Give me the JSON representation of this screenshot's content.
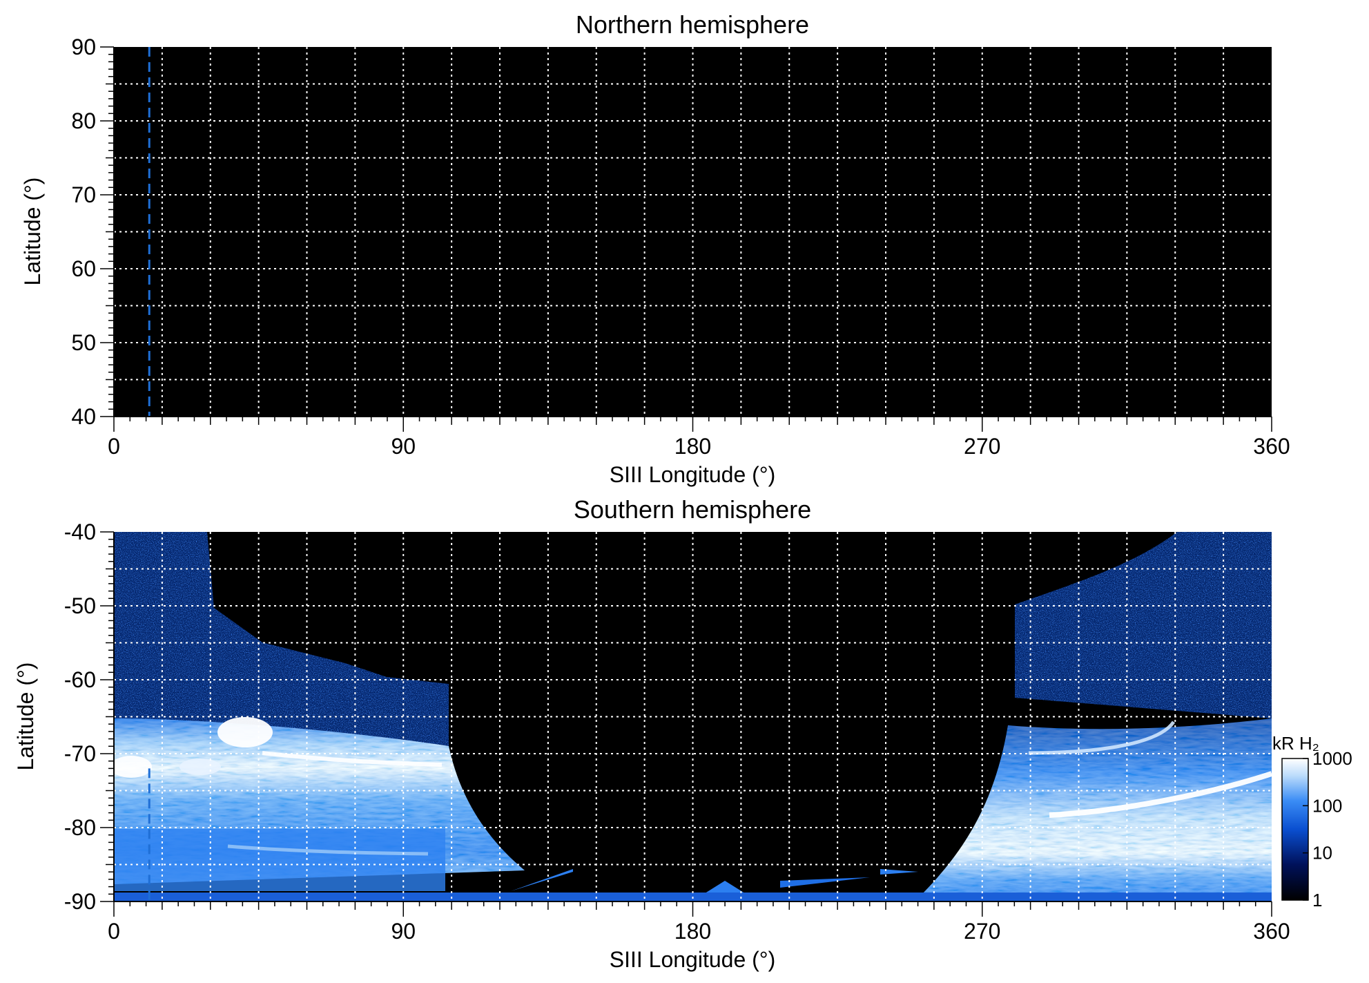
{
  "chart_data": [
    {
      "type": "heatmap",
      "title": "Northern hemisphere",
      "xlabel": "SIII Longitude (°)",
      "ylabel": "Latitude (°)",
      "xlim": [
        0,
        360
      ],
      "ylim": [
        40,
        90
      ],
      "xticks": [
        0,
        90,
        180,
        270,
        360
      ],
      "xtick_labels": [
        "0",
        "90",
        "180",
        "270",
        "360"
      ],
      "yticks": [
        40,
        50,
        60,
        70,
        80,
        90
      ],
      "ytick_labels": [
        "40",
        "50",
        "60",
        "70",
        "80",
        "90"
      ],
      "grid": true,
      "grid_style": "dotted white",
      "grid_x_step": 15,
      "grid_y_step": 5,
      "background": "#000000",
      "reference_line": {
        "longitude": 11,
        "color": "#1f6fd6",
        "style": "dashed"
      },
      "emission": []
    },
    {
      "type": "heatmap",
      "title": "Southern hemisphere",
      "xlabel": "SIII Longitude (°)",
      "ylabel": "Latitude (°)",
      "xlim": [
        0,
        360
      ],
      "ylim": [
        -90,
        -40
      ],
      "xticks": [
        0,
        90,
        180,
        270,
        360
      ],
      "xtick_labels": [
        "0",
        "90",
        "180",
        "270",
        "360"
      ],
      "yticks": [
        -90,
        -80,
        -70,
        -60,
        -50,
        -40
      ],
      "ytick_labels": [
        "-90",
        "-80",
        "-70",
        "-60",
        "-50",
        "-40"
      ],
      "grid": true,
      "grid_style": "dotted white",
      "grid_x_step": 15,
      "grid_y_step": 5,
      "background": "#000000",
      "reference_line": {
        "longitude": 11,
        "color": "#1f6fd6",
        "style": "dashed",
        "lat_range": [
          -90,
          -72
        ]
      },
      "emission": [
        {
          "region": "west-edge-noise",
          "lon_range": [
            0,
            106
          ],
          "lat_range": [
            -65,
            -40
          ],
          "level": "low"
        },
        {
          "region": "west-main-oval",
          "lon_range": [
            0,
            106
          ],
          "lat_range": [
            -90,
            -65
          ],
          "level": "high"
        },
        {
          "region": "east-edge-noise",
          "lon_range": [
            282,
            360
          ],
          "lat_range": [
            -66,
            -40
          ],
          "level": "low"
        },
        {
          "region": "east-main-oval",
          "lon_range": [
            270,
            360
          ],
          "lat_range": [
            -90,
            -66
          ],
          "level": "high"
        }
      ],
      "colorbar": {
        "label": "kR H₂",
        "scale": "log",
        "range": [
          1,
          1000
        ],
        "ticks": [
          "1",
          "10",
          "100",
          "1000"
        ],
        "colors": [
          "#000000",
          "#00115a",
          "#0a4fd0",
          "#3a8cf5",
          "#bcdcfb",
          "#ffffff"
        ]
      }
    }
  ]
}
